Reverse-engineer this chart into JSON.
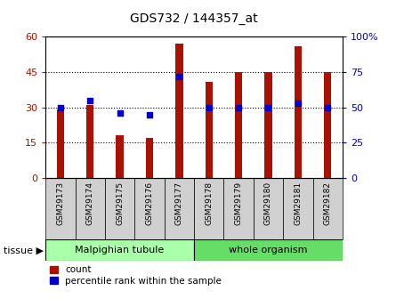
{
  "title": "GDS732 / 144357_at",
  "samples": [
    "GSM29173",
    "GSM29174",
    "GSM29175",
    "GSM29176",
    "GSM29177",
    "GSM29178",
    "GSM29179",
    "GSM29180",
    "GSM29181",
    "GSM29182"
  ],
  "counts": [
    29,
    31,
    18,
    17,
    57,
    41,
    45,
    45,
    56,
    45
  ],
  "percentiles": [
    50,
    55,
    46,
    45,
    72,
    50,
    50,
    50,
    53,
    50
  ],
  "ylim_left": [
    0,
    60
  ],
  "ylim_right": [
    0,
    100
  ],
  "yticks_left": [
    0,
    15,
    30,
    45,
    60
  ],
  "yticks_right": [
    0,
    25,
    50,
    75,
    100
  ],
  "group1_label": "Malpighian tubule",
  "group1_indices": [
    0,
    1,
    2,
    3,
    4
  ],
  "group1_color": "#aaffaa",
  "group2_label": "whole organism",
  "group2_indices": [
    5,
    6,
    7,
    8,
    9
  ],
  "group2_color": "#66dd66",
  "bar_color": "#aa1100",
  "dot_color": "#0000cc",
  "plot_bg": "#d8d8d8",
  "tissue_label": "tissue",
  "legend_count": "count",
  "legend_percentile": "percentile rank within the sample",
  "xlabel_bg": "#d0d0d0",
  "grid_dotted_ticks": [
    15,
    30,
    45
  ]
}
